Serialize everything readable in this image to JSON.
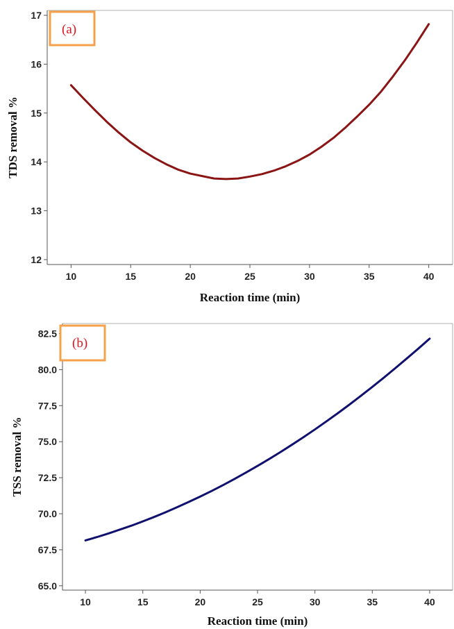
{
  "chart_data": [
    {
      "type": "line",
      "panel_label": "(a)",
      "xlabel": "Reaction time (min)",
      "ylabel": "TDS removal %",
      "xlim": [
        8,
        42
      ],
      "ylim": [
        11.9,
        17.1
      ],
      "x_ticks": [
        10,
        15,
        20,
        25,
        30,
        35,
        40
      ],
      "y_ticks": [
        12,
        13,
        14,
        15,
        16,
        17
      ],
      "y_decimals": 0,
      "grid": false,
      "line_color": "#8b1414",
      "series": [
        {
          "x": [
            10,
            11,
            12,
            13,
            14,
            15,
            16,
            17,
            18,
            19,
            20,
            21,
            22,
            23,
            24,
            25,
            26,
            27,
            28,
            29,
            30,
            31,
            32,
            33,
            34,
            35,
            36,
            37,
            38,
            39,
            40
          ],
          "y": [
            15.57,
            15.31,
            15.06,
            14.82,
            14.6,
            14.4,
            14.23,
            14.08,
            13.95,
            13.84,
            13.76,
            13.71,
            13.66,
            13.65,
            13.66,
            13.7,
            13.75,
            13.82,
            13.91,
            14.02,
            14.15,
            14.31,
            14.49,
            14.7,
            14.93,
            15.17,
            15.44,
            15.75,
            16.08,
            16.44,
            16.82
          ]
        }
      ]
    },
    {
      "type": "line",
      "panel_label": "(b)",
      "xlabel": "Reaction time (min)",
      "ylabel": "TSS removal %",
      "xlim": [
        8,
        42
      ],
      "ylim": [
        64.7,
        83.2
      ],
      "x_ticks": [
        10,
        15,
        20,
        25,
        30,
        35,
        40
      ],
      "y_ticks": [
        65.0,
        67.5,
        70.0,
        72.5,
        75.0,
        77.5,
        80.0,
        82.5
      ],
      "y_decimals": 1,
      "grid": false,
      "line_color": "#10106e",
      "series": [
        {
          "x": [
            10,
            11,
            12,
            13,
            14,
            15,
            16,
            17,
            18,
            19,
            20,
            21,
            22,
            23,
            24,
            25,
            26,
            27,
            28,
            29,
            30,
            31,
            32,
            33,
            34,
            35,
            36,
            37,
            38,
            39,
            40
          ],
          "y": [
            68.15,
            68.38,
            68.63,
            68.9,
            69.17,
            69.47,
            69.78,
            70.11,
            70.46,
            70.82,
            71.19,
            71.58,
            71.99,
            72.42,
            72.86,
            73.32,
            73.79,
            74.28,
            74.79,
            75.31,
            75.85,
            76.41,
            76.98,
            77.57,
            78.18,
            78.8,
            79.44,
            80.1,
            80.77,
            81.45,
            82.15
          ]
        }
      ]
    }
  ],
  "colors": {
    "tag_border": "#f5a04a",
    "tag_text": "#e0141e",
    "axis": "#555555"
  }
}
